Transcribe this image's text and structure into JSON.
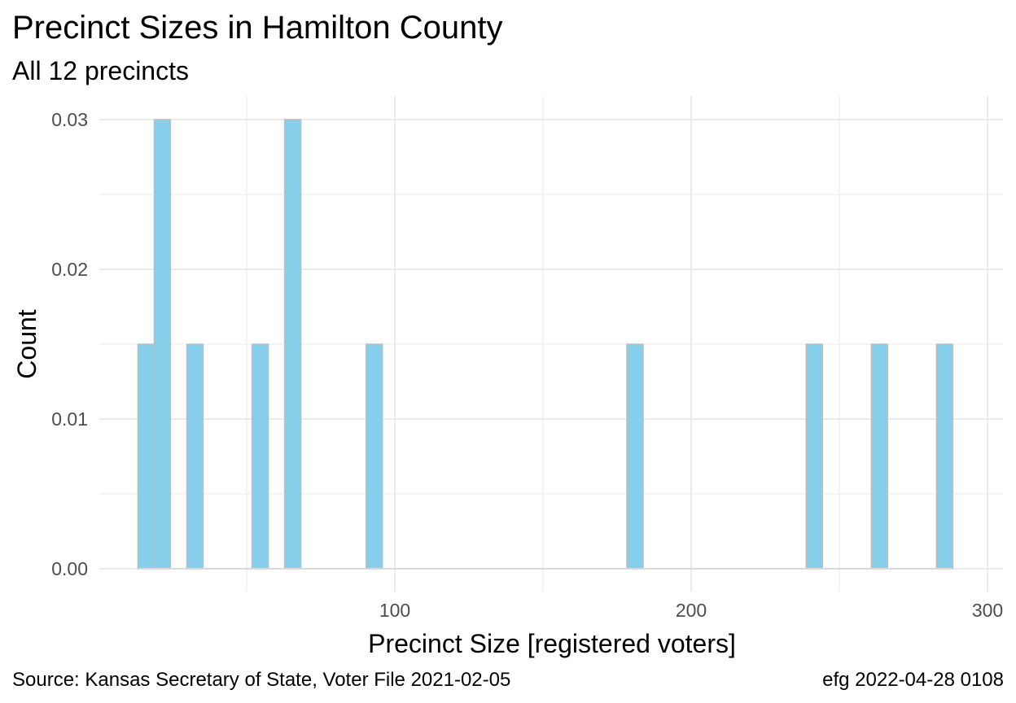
{
  "chart_data": {
    "type": "bar",
    "title": "Precinct Sizes in Hamilton County",
    "subtitle": "All 12 precincts",
    "xlabel": "Precinct Size [registered voters]",
    "ylabel": "Count",
    "xlim": [
      0,
      305
    ],
    "ylim": [
      0,
      0.0315
    ],
    "x_ticks": [
      100,
      200,
      300
    ],
    "y_ticks": [
      "0.00",
      "0.01",
      "0.02",
      "0.03"
    ],
    "x_tick_labels": [
      "100",
      "200",
      "300"
    ],
    "bin_width": 5.5,
    "bins": [
      {
        "start": 13.3,
        "end": 18.8,
        "value": 0.015
      },
      {
        "start": 18.8,
        "end": 24.3,
        "value": 0.03
      },
      {
        "start": 29.8,
        "end": 35.3,
        "value": 0.015
      },
      {
        "start": 51.8,
        "end": 57.3,
        "value": 0.015
      },
      {
        "start": 62.8,
        "end": 68.3,
        "value": 0.03
      },
      {
        "start": 90.3,
        "end": 95.8,
        "value": 0.015
      },
      {
        "start": 178.3,
        "end": 183.8,
        "value": 0.015
      },
      {
        "start": 238.8,
        "end": 244.3,
        "value": 0.015
      },
      {
        "start": 260.8,
        "end": 266.3,
        "value": 0.015
      },
      {
        "start": 282.8,
        "end": 288.3,
        "value": 0.015
      }
    ],
    "grid": true,
    "colors": {
      "fill": "#87CEEB",
      "stroke": "#BEBEBE",
      "grid": "#EBEBEB",
      "baseline": "#D9D9D9"
    }
  },
  "caption": {
    "source": "Source:  Kansas Secretary of State, Voter File  2021-02-05",
    "stamp": "efg 2022-04-28 0108"
  }
}
